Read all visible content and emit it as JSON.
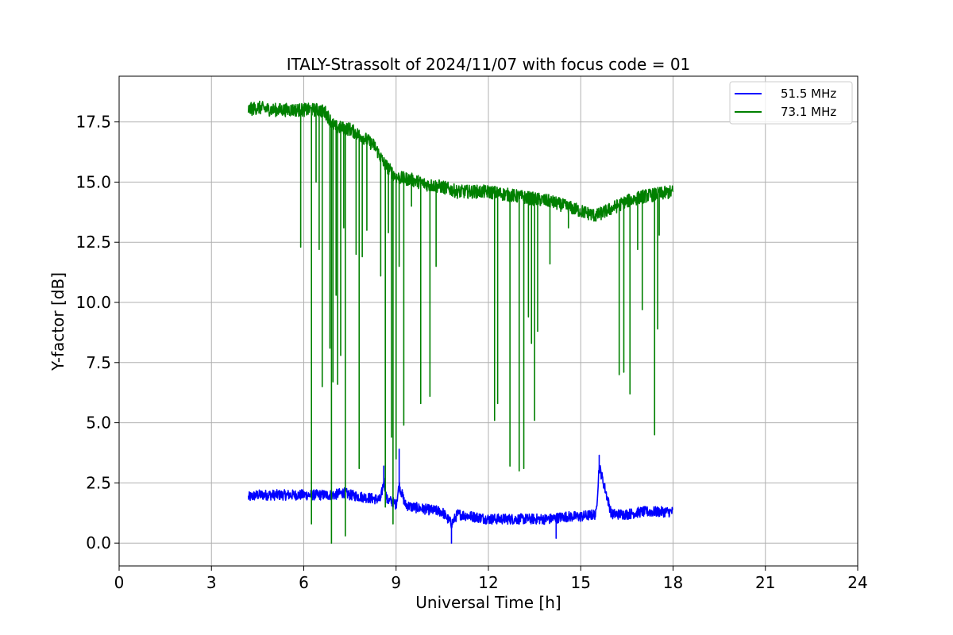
{
  "chart_data": {
    "type": "line",
    "title": "ITALY-Strassolt of 2024/11/07 with focus code = 01",
    "xlabel": "Universal Time [h]",
    "ylabel": "Y-factor [dB]",
    "xlim": [
      0,
      24
    ],
    "ylim": [
      -0.95,
      19.4
    ],
    "xticks": [
      0,
      3,
      6,
      9,
      12,
      15,
      18,
      21,
      24
    ],
    "xtick_labels": [
      "0",
      "3",
      "6",
      "9",
      "12",
      "15",
      "18",
      "21",
      "24"
    ],
    "yticks": [
      0.0,
      2.5,
      5.0,
      7.5,
      10.0,
      12.5,
      15.0,
      17.5
    ],
    "ytick_labels": [
      "0.0",
      "2.5",
      "5.0",
      "7.5",
      "10.0",
      "12.5",
      "15.0",
      "17.5"
    ],
    "grid": true,
    "legend_position": "top-right",
    "series": [
      {
        "name": "51.5 MHz",
        "color": "#0000ff",
        "x": [
          4.2,
          4.5,
          5.0,
          5.5,
          6.0,
          6.5,
          7.0,
          7.3,
          7.5,
          8.0,
          8.5,
          8.6,
          8.7,
          8.9,
          9.0,
          9.1,
          9.3,
          9.5,
          10.0,
          10.5,
          10.8,
          11.0,
          11.5,
          12.0,
          12.5,
          13.0,
          13.5,
          14.0,
          14.5,
          15.0,
          15.5,
          15.6,
          16.0,
          16.5,
          17.0,
          17.5,
          18.0
        ],
        "y": [
          1.9,
          2.0,
          2.0,
          2.0,
          2.0,
          2.0,
          2.0,
          2.1,
          2.0,
          1.9,
          1.8,
          2.6,
          1.8,
          1.7,
          1.6,
          2.4,
          1.6,
          1.5,
          1.4,
          1.3,
          0.8,
          1.2,
          1.1,
          1.0,
          1.0,
          1.0,
          1.0,
          1.0,
          1.1,
          1.1,
          1.2,
          3.2,
          1.2,
          1.2,
          1.3,
          1.3,
          1.3
        ],
        "spikes": [
          [
            8.6,
            3.2
          ],
          [
            9.1,
            3.9
          ],
          [
            15.6,
            3.65
          ],
          [
            10.8,
            0.0
          ],
          [
            14.2,
            0.2
          ]
        ]
      },
      {
        "name": "73.1 MHz",
        "color": "#008000",
        "x": [
          4.2,
          4.5,
          5.0,
          5.5,
          6.0,
          6.5,
          6.7,
          7.0,
          7.5,
          8.0,
          8.3,
          8.6,
          9.0,
          9.5,
          10.0,
          10.5,
          11.0,
          11.5,
          12.0,
          12.5,
          13.0,
          13.5,
          14.0,
          14.5,
          15.0,
          15.5,
          16.0,
          16.5,
          17.0,
          17.5,
          18.0
        ],
        "y": [
          18.0,
          18.1,
          18.0,
          18.0,
          18.0,
          18.0,
          17.9,
          17.3,
          17.2,
          16.8,
          16.5,
          15.8,
          15.2,
          15.1,
          14.9,
          14.8,
          14.6,
          14.6,
          14.6,
          14.5,
          14.4,
          14.3,
          14.2,
          14.0,
          13.8,
          13.6,
          13.9,
          14.2,
          14.4,
          14.5,
          14.6
        ],
        "spikes": [
          [
            5.9,
            12.3
          ],
          [
            6.25,
            0.8
          ],
          [
            6.4,
            15.0
          ],
          [
            6.5,
            12.2
          ],
          [
            6.6,
            6.5
          ],
          [
            6.85,
            8.1
          ],
          [
            6.9,
            0.0
          ],
          [
            6.95,
            6.7
          ],
          [
            7.05,
            10.3
          ],
          [
            7.1,
            6.6
          ],
          [
            7.2,
            7.8
          ],
          [
            7.3,
            13.1
          ],
          [
            7.35,
            0.3
          ],
          [
            7.7,
            12.0
          ],
          [
            7.8,
            3.1
          ],
          [
            7.9,
            11.9
          ],
          [
            8.05,
            13.0
          ],
          [
            8.5,
            11.1
          ],
          [
            8.65,
            1.5
          ],
          [
            8.75,
            12.9
          ],
          [
            8.85,
            4.4
          ],
          [
            8.9,
            0.8
          ],
          [
            9.0,
            3.5
          ],
          [
            9.1,
            11.5
          ],
          [
            9.25,
            4.9
          ],
          [
            9.5,
            14.0
          ],
          [
            9.8,
            5.8
          ],
          [
            10.1,
            6.1
          ],
          [
            10.3,
            11.5
          ],
          [
            12.2,
            5.1
          ],
          [
            12.3,
            5.8
          ],
          [
            12.7,
            3.2
          ],
          [
            13.0,
            3.0
          ],
          [
            13.15,
            3.1
          ],
          [
            13.3,
            9.4
          ],
          [
            13.4,
            8.3
          ],
          [
            13.5,
            5.1
          ],
          [
            13.6,
            8.8
          ],
          [
            14.0,
            11.6
          ],
          [
            14.6,
            13.1
          ],
          [
            16.25,
            7.0
          ],
          [
            16.4,
            7.1
          ],
          [
            16.6,
            6.2
          ],
          [
            16.85,
            12.2
          ],
          [
            17.0,
            9.7
          ],
          [
            17.4,
            4.5
          ],
          [
            17.5,
            8.9
          ],
          [
            17.55,
            12.8
          ]
        ]
      }
    ]
  }
}
